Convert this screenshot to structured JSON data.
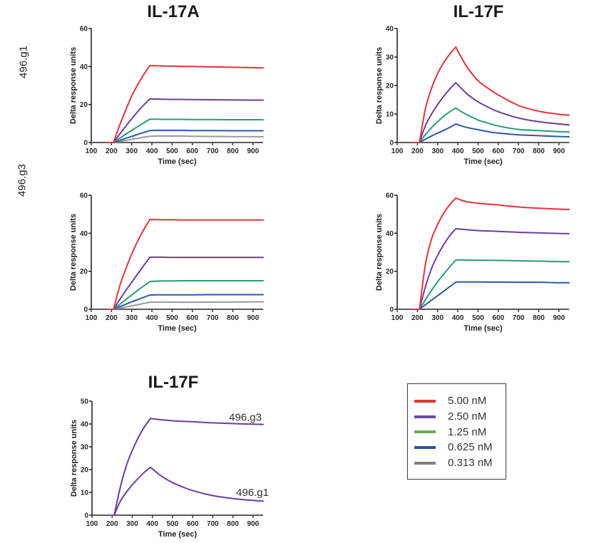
{
  "figure": {
    "row_labels": [
      "496.g1",
      "496.g3"
    ],
    "legend": {
      "items": [
        {
          "label": "5.00 nM",
          "color": "#e8323a"
        },
        {
          "label": "2.50 nM",
          "color": "#6a4c9c"
        },
        {
          "label": "1.25 nM",
          "color": "#6aab5a"
        },
        {
          "label": "0.625 nM",
          "color": "#2a5599"
        },
        {
          "label": "0.313 nM",
          "color": "#7f7f7f"
        }
      ]
    }
  },
  "chart_data": [
    {
      "type": "line",
      "title": "IL-17A",
      "cytokine": "IL-17A",
      "antibody": "496.g1",
      "xlabel": "Time (sec)",
      "ylabel": "Delta response units",
      "xlim": [
        100,
        950
      ],
      "ylim": [
        0,
        60
      ],
      "xticks": [
        100,
        200,
        300,
        400,
        500,
        600,
        700,
        800,
        900
      ],
      "yticks": [
        0,
        20,
        40,
        60
      ],
      "grid": false,
      "association_window": [
        210,
        390
      ],
      "x": [
        180,
        210,
        240,
        270,
        300,
        330,
        360,
        390,
        420,
        450,
        500,
        550,
        600,
        700,
        800,
        900,
        950
      ],
      "series": [
        {
          "name": "5.00 nM",
          "color": "#e3343a",
          "values": [
            0,
            0,
            9.0,
            17.0,
            24.5,
            30.5,
            35.8,
            40.5,
            40.4,
            40.3,
            40.2,
            40.1,
            40.0,
            39.8,
            39.6,
            39.4,
            39.3
          ]
        },
        {
          "name": "2.50 nM",
          "color": "#6b3d9e",
          "values": [
            0,
            0,
            4.3,
            8.5,
            12.5,
            16.3,
            19.8,
            23.0,
            22.9,
            22.8,
            22.7,
            22.7,
            22.6,
            22.5,
            22.4,
            22.3,
            22.3
          ]
        },
        {
          "name": "1.25 nM",
          "color": "#2b9b73",
          "values": [
            0,
            0,
            2.2,
            4.3,
            6.4,
            8.4,
            10.4,
            12.3,
            12.3,
            12.2,
            12.2,
            12.2,
            12.1,
            12.1,
            12.0,
            12.0,
            12.0
          ]
        },
        {
          "name": "0.625 nM",
          "color": "#2c5aa8",
          "values": [
            0,
            0,
            1.1,
            2.2,
            3.2,
            4.3,
            5.3,
            6.3,
            6.4,
            6.4,
            6.4,
            6.4,
            6.3,
            6.3,
            6.2,
            6.2,
            6.2
          ]
        },
        {
          "name": "0.313 nM",
          "color": "#9a9a9a",
          "values": [
            0,
            0,
            0.6,
            1.1,
            1.7,
            2.2,
            2.8,
            3.3,
            3.4,
            3.4,
            3.4,
            3.4,
            3.3,
            3.2,
            3.1,
            3.1,
            3.0
          ]
        }
      ]
    },
    {
      "type": "line",
      "title": "IL-17F",
      "cytokine": "IL-17F",
      "antibody": "496.g1",
      "xlabel": "Time (sec)",
      "ylabel": "Delta response units",
      "xlim": [
        100,
        950
      ],
      "ylim": [
        0,
        40
      ],
      "xticks": [
        100,
        200,
        300,
        400,
        500,
        600,
        700,
        800,
        900
      ],
      "yticks": [
        0,
        10,
        20,
        30,
        40
      ],
      "grid": false,
      "association_window": [
        210,
        390
      ],
      "x": [
        180,
        210,
        240,
        270,
        300,
        330,
        360,
        390,
        420,
        450,
        500,
        550,
        600,
        700,
        800,
        900,
        950
      ],
      "series": [
        {
          "name": "5.00 nM",
          "color": "#e3343a",
          "values": [
            0,
            0,
            12.0,
            19.0,
            24.2,
            28.0,
            31.0,
            33.5,
            29.5,
            26.0,
            21.7,
            19.0,
            16.7,
            13.0,
            11.0,
            9.9,
            9.6
          ]
        },
        {
          "name": "2.50 nM",
          "color": "#6b3d9e",
          "values": [
            0,
            0,
            6.0,
            10.0,
            13.3,
            16.2,
            18.8,
            21.0,
            18.8,
            16.8,
            14.3,
            12.4,
            10.8,
            8.6,
            7.3,
            6.5,
            6.2
          ]
        },
        {
          "name": "1.25 nM",
          "color": "#2b9b73",
          "values": [
            0,
            0,
            2.8,
            5.2,
            7.3,
            9.2,
            10.8,
            12.1,
            10.7,
            9.6,
            7.9,
            6.8,
            5.8,
            4.6,
            4.2,
            3.8,
            3.7
          ]
        },
        {
          "name": "0.625 nM",
          "color": "#2c5aa8",
          "values": [
            0,
            0,
            1.2,
            2.3,
            3.3,
            4.3,
            5.3,
            6.5,
            5.8,
            5.2,
            4.5,
            3.8,
            3.3,
            2.7,
            2.4,
            2.1,
            2.0
          ]
        }
      ]
    },
    {
      "type": "line",
      "title": "",
      "cytokine": "IL-17A",
      "antibody": "496.g3",
      "xlabel": "Time (sec)",
      "ylabel": "Delta response units",
      "xlim": [
        100,
        950
      ],
      "ylim": [
        0,
        60
      ],
      "xticks": [
        100,
        200,
        300,
        400,
        500,
        600,
        700,
        800,
        900
      ],
      "yticks": [
        0,
        20,
        40,
        60
      ],
      "grid": false,
      "association_window": [
        210,
        390
      ],
      "x": [
        180,
        210,
        240,
        270,
        300,
        330,
        360,
        390,
        420,
        450,
        500,
        550,
        600,
        700,
        800,
        900,
        950
      ],
      "series": [
        {
          "name": "5.00 nM",
          "color": "#e3343a",
          "values": [
            0,
            0,
            12.0,
            21.0,
            29.0,
            36.0,
            42.0,
            47.2,
            47.2,
            47.1,
            47.1,
            47.0,
            47.0,
            47.0,
            47.0,
            47.0,
            47.0
          ]
        },
        {
          "name": "2.50 nM",
          "color": "#6b3d9e",
          "values": [
            0,
            0,
            5.0,
            9.8,
            14.2,
            18.7,
            23.1,
            27.4,
            27.4,
            27.4,
            27.3,
            27.3,
            27.3,
            27.3,
            27.3,
            27.3,
            27.3
          ]
        },
        {
          "name": "1.25 nM",
          "color": "#2b9b73",
          "values": [
            0,
            0,
            2.5,
            5.0,
            7.5,
            10.0,
            12.3,
            14.6,
            14.8,
            14.9,
            14.9,
            15.0,
            15.0,
            15.0,
            15.0,
            15.0,
            15.0
          ]
        },
        {
          "name": "0.625 nM",
          "color": "#2c5aa8",
          "values": [
            0,
            0,
            1.3,
            2.6,
            3.9,
            5.1,
            6.3,
            7.5,
            7.6,
            7.6,
            7.6,
            7.6,
            7.6,
            7.7,
            7.7,
            7.7,
            7.7
          ]
        },
        {
          "name": "0.313 nM",
          "color": "#9a9a9a",
          "values": [
            0,
            0,
            0.6,
            1.2,
            1.8,
            2.4,
            3.1,
            3.7,
            3.8,
            3.8,
            3.8,
            3.7,
            3.7,
            3.8,
            3.8,
            3.9,
            3.9
          ]
        }
      ]
    },
    {
      "type": "line",
      "title": "",
      "cytokine": "IL-17F",
      "antibody": "496.g3",
      "xlabel": "Time (sec)",
      "ylabel": "Delta response units",
      "xlim": [
        100,
        950
      ],
      "ylim": [
        0,
        60
      ],
      "xticks": [
        100,
        200,
        300,
        400,
        500,
        600,
        700,
        800,
        900
      ],
      "yticks": [
        0,
        20,
        40,
        60
      ],
      "grid": false,
      "association_window": [
        210,
        390
      ],
      "x": [
        180,
        210,
        240,
        270,
        300,
        330,
        360,
        390,
        420,
        450,
        500,
        550,
        600,
        700,
        800,
        900,
        950
      ],
      "series": [
        {
          "name": "5.00 nM",
          "color": "#e3343a",
          "values": [
            0,
            0,
            24.0,
            37.0,
            44.6,
            50.5,
            55.0,
            58.5,
            57.3,
            56.5,
            55.8,
            55.3,
            54.9,
            53.8,
            53.2,
            52.7,
            52.5
          ]
        },
        {
          "name": "2.50 nM",
          "color": "#6b3d9e",
          "values": [
            0,
            0,
            12.0,
            21.5,
            28.4,
            34.0,
            38.7,
            42.4,
            42.1,
            41.8,
            41.4,
            41.2,
            41.0,
            40.5,
            40.2,
            39.9,
            39.8
          ]
        },
        {
          "name": "1.25 nM",
          "color": "#2b9b73",
          "values": [
            0,
            0,
            5.0,
            10.0,
            14.5,
            18.5,
            22.3,
            25.9,
            25.9,
            25.9,
            25.8,
            25.8,
            25.7,
            25.5,
            25.3,
            25.1,
            25.0
          ]
        },
        {
          "name": "0.625 nM",
          "color": "#2c5aa8",
          "values": [
            0,
            0,
            2.4,
            4.8,
            7.1,
            9.5,
            11.9,
            14.3,
            14.4,
            14.4,
            14.4,
            14.3,
            14.3,
            14.2,
            14.2,
            14.0,
            14.0
          ]
        }
      ]
    },
    {
      "type": "line",
      "title": "IL-17F",
      "cytokine": "IL-17F",
      "xlabel": "Time (sec)",
      "ylabel": "Delta response units",
      "xlim": [
        100,
        950
      ],
      "ylim": [
        0,
        50
      ],
      "xticks": [
        100,
        200,
        300,
        400,
        500,
        600,
        700,
        800,
        900
      ],
      "yticks": [
        0,
        10,
        20,
        30,
        40,
        50
      ],
      "grid": false,
      "association_window": [
        210,
        390
      ],
      "x": [
        180,
        210,
        240,
        270,
        300,
        330,
        360,
        390,
        420,
        450,
        500,
        550,
        600,
        700,
        800,
        900,
        950
      ],
      "series": [
        {
          "name": "496.g3",
          "color": "#6b3d9e",
          "values": [
            0,
            0,
            12.0,
            21.5,
            28.4,
            34.0,
            38.7,
            42.4,
            42.1,
            41.8,
            41.4,
            41.2,
            41.0,
            40.5,
            40.2,
            39.9,
            39.8
          ]
        },
        {
          "name": "496.g1",
          "color": "#6b3d9e",
          "values": [
            0,
            0,
            6.0,
            10.0,
            13.3,
            16.2,
            18.8,
            21.0,
            18.8,
            16.8,
            14.3,
            12.4,
            10.8,
            8.6,
            7.3,
            6.5,
            6.2
          ]
        }
      ],
      "annotations": [
        {
          "text": "496.g3",
          "series": 0
        },
        {
          "text": "496.g1",
          "series": 1
        }
      ]
    }
  ]
}
